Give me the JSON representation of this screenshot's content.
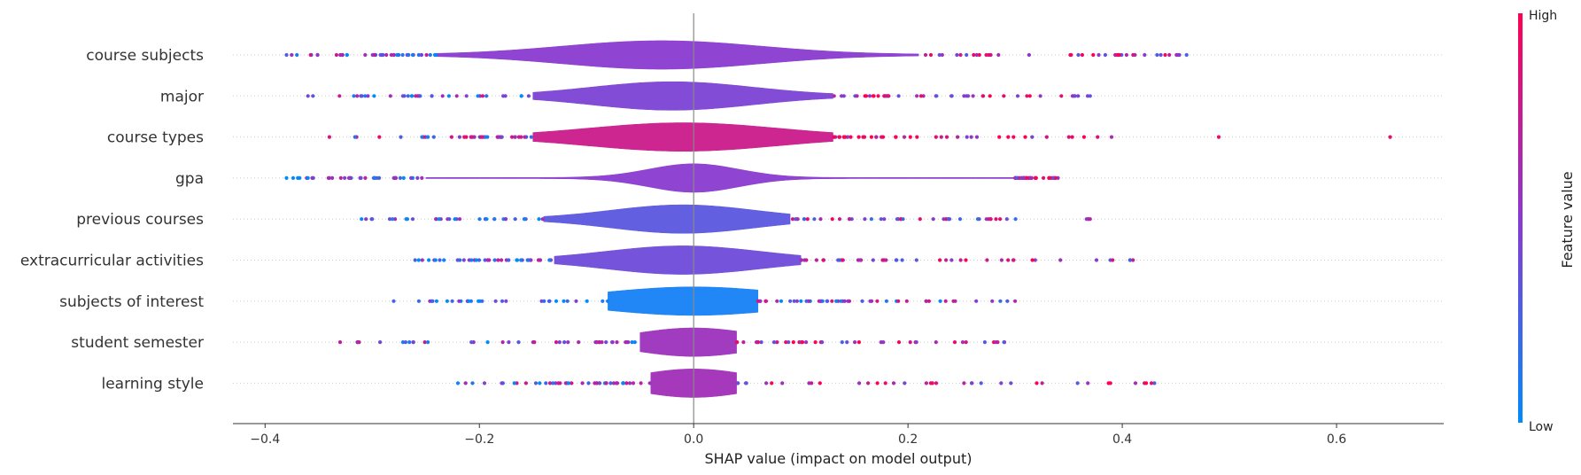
{
  "chart_data": {
    "type": "scatter",
    "subtype": "shap-violin",
    "xlabel": "SHAP value (impact on model output)",
    "xlim": [
      -0.43,
      0.7
    ],
    "xticks": [
      -0.4,
      -0.2,
      0.0,
      0.2,
      0.4,
      0.6
    ],
    "xtick_labels": [
      "−0.4",
      "−0.2",
      "0.0",
      "0.2",
      "0.4",
      "0.6"
    ],
    "colorbar": {
      "title": "Feature value",
      "high_label": "High",
      "low_label": "Low",
      "high_color": "#ff0052",
      "low_color": "#008bfb"
    },
    "features": [
      {
        "name": "course subjects",
        "min": -0.38,
        "max": 0.46,
        "center": -0.03,
        "spread": 0.22,
        "violin_lo": -0.24,
        "violin_hi": 0.21,
        "bias": 0.0,
        "outliers": []
      },
      {
        "name": "major",
        "min": -0.36,
        "max": 0.37,
        "center": -0.02,
        "spread": 0.18,
        "violin_lo": -0.15,
        "violin_hi": 0.13,
        "bias": -0.1,
        "outliers": []
      },
      {
        "name": "course types",
        "min": -0.34,
        "max": 0.39,
        "center": -0.01,
        "spread": 0.21,
        "violin_lo": -0.15,
        "violin_hi": 0.13,
        "bias": 0.55,
        "outliers": [
          0.49,
          0.65
        ]
      },
      {
        "name": "gpa",
        "min": -0.38,
        "max": 0.34,
        "center": 0.0,
        "spread": 0.1,
        "violin_lo": -0.25,
        "violin_hi": 0.3,
        "bias": 0.0,
        "outliers": []
      },
      {
        "name": "previous courses",
        "min": -0.31,
        "max": 0.37,
        "center": -0.01,
        "spread": 0.16,
        "violin_lo": -0.14,
        "violin_hi": 0.09,
        "bias": -0.35,
        "outliers": []
      },
      {
        "name": "extracurricular activities",
        "min": -0.26,
        "max": 0.41,
        "center": -0.01,
        "spread": 0.17,
        "violin_lo": -0.13,
        "violin_hi": 0.1,
        "bias": -0.2,
        "outliers": []
      },
      {
        "name": "subjects of interest",
        "min": -0.28,
        "max": 0.3,
        "center": 0.0,
        "spread": 0.2,
        "violin_lo": -0.08,
        "violin_hi": 0.06,
        "bias": -0.85,
        "outliers": []
      },
      {
        "name": "student semester",
        "min": -0.33,
        "max": 0.29,
        "center": 0.0,
        "spread": 0.13,
        "violin_lo": -0.05,
        "violin_hi": 0.04,
        "bias": 0.15,
        "outliers": []
      },
      {
        "name": "learning style",
        "min": -0.22,
        "max": 0.43,
        "center": 0.0,
        "spread": 0.12,
        "violin_lo": -0.04,
        "violin_hi": 0.04,
        "bias": 0.2,
        "outliers": []
      }
    ]
  }
}
